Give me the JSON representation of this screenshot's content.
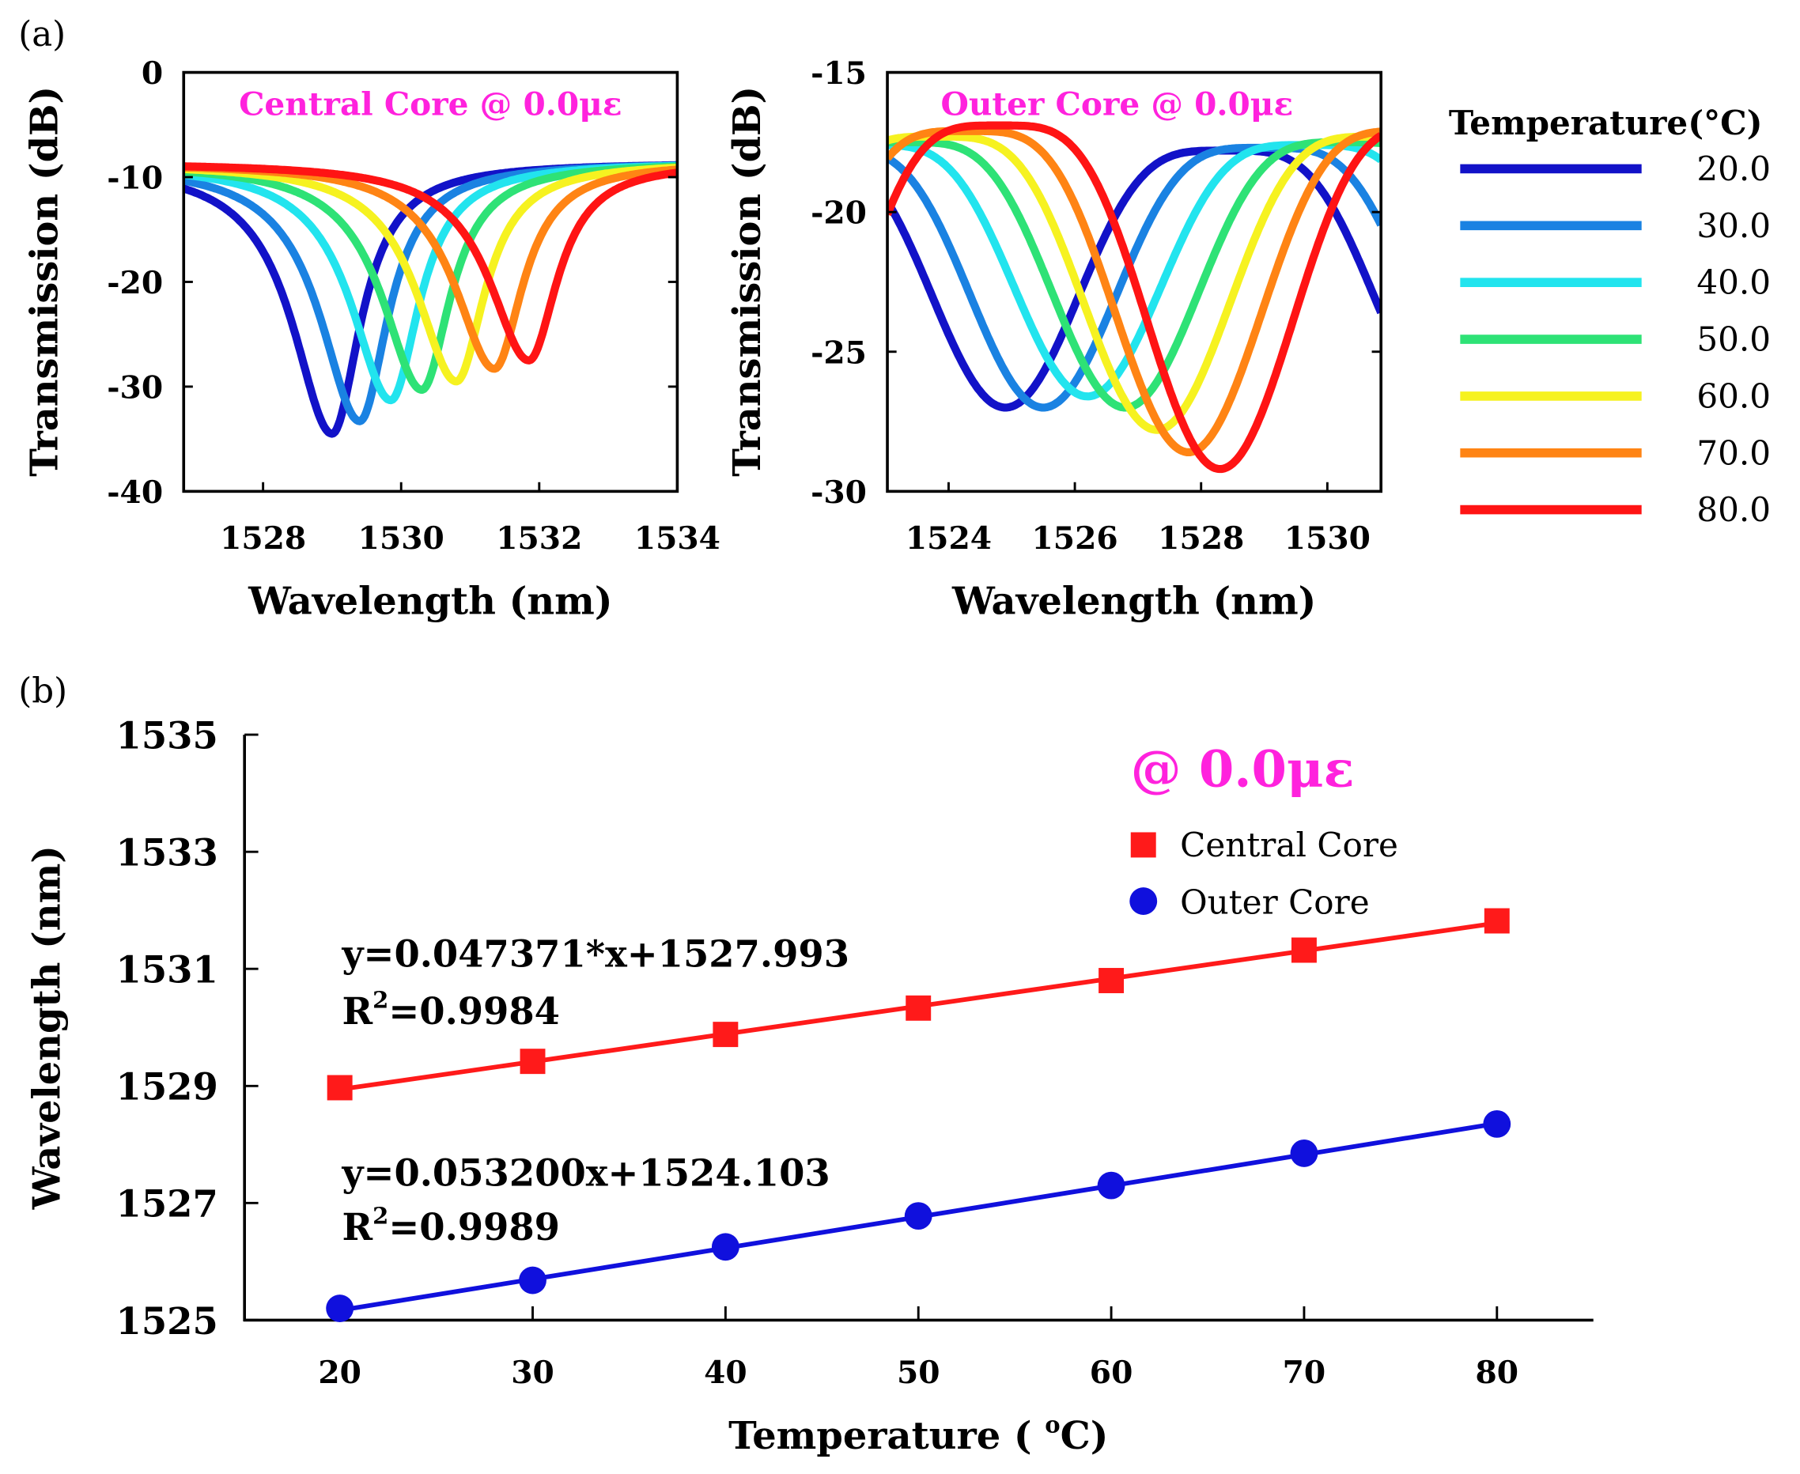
{
  "chart_data": [
    {
      "type": "line",
      "panel_label": "(a)",
      "title": "Central Core @ 0.0με",
      "xlabel": "Wavelength (nm)",
      "ylabel": "Transmission (dB)",
      "xlim": [
        1526.85,
        1534
      ],
      "ylim": [
        -40,
        0
      ],
      "xticks": [
        "1528",
        "1530",
        "1532",
        "1534"
      ],
      "xtick_values": [
        1528,
        1530,
        1532,
        1534
      ],
      "yticks": [
        "0",
        "-10",
        "-20",
        "-30",
        "-40"
      ],
      "ytick_values": [
        0,
        -10,
        -20,
        -30,
        -40
      ],
      "grid": false,
      "series": [
        {
          "name": "20.0",
          "dip_wavelength": 1529.0,
          "dip_db": -34.5
        },
        {
          "name": "30.0",
          "dip_wavelength": 1529.4,
          "dip_db": -33.3
        },
        {
          "name": "40.0",
          "dip_wavelength": 1529.85,
          "dip_db": -31.3
        },
        {
          "name": "50.0",
          "dip_wavelength": 1530.3,
          "dip_db": -30.3
        },
        {
          "name": "60.0",
          "dip_wavelength": 1530.8,
          "dip_db": -29.5
        },
        {
          "name": "70.0",
          "dip_wavelength": 1531.35,
          "dip_db": -28.3
        },
        {
          "name": "80.0",
          "dip_wavelength": 1531.85,
          "dip_db": -27.5
        }
      ]
    },
    {
      "type": "line",
      "title": "Outer Core @ 0.0με",
      "xlabel": "Wavelength (nm)",
      "ylabel": "Transmission (dB)",
      "xlim": [
        1523.03,
        1530.85
      ],
      "ylim": [
        -30,
        -15
      ],
      "xticks": [
        "1524",
        "1526",
        "1528",
        "1530"
      ],
      "xtick_values": [
        1524,
        1526,
        1528,
        1530
      ],
      "yticks": [
        "-15",
        "-20",
        "-25",
        "-30"
      ],
      "ytick_values": [
        -15,
        -20,
        -25,
        -30
      ],
      "grid": false,
      "series": [
        {
          "name": "20.0",
          "dip_wavelength": 1524.9,
          "dip_db": -27.0,
          "peak_db": -17.8
        },
        {
          "name": "30.0",
          "dip_wavelength": 1525.5,
          "dip_db": -27.0,
          "peak_db": -17.7
        },
        {
          "name": "40.0",
          "dip_wavelength": 1526.2,
          "dip_db": -26.6,
          "peak_db": -17.6
        },
        {
          "name": "50.0",
          "dip_wavelength": 1526.8,
          "dip_db": -27.0,
          "peak_db": -17.5
        },
        {
          "name": "60.0",
          "dip_wavelength": 1527.3,
          "dip_db": -27.8,
          "peak_db": -17.3
        },
        {
          "name": "70.0",
          "dip_wavelength": 1527.8,
          "dip_db": -28.6,
          "peak_db": -17.1
        },
        {
          "name": "80.0",
          "dip_wavelength": 1528.3,
          "dip_db": -29.2,
          "peak_db": -16.9
        }
      ],
      "legend": {
        "title": "Temperature(°C)",
        "placement": "right",
        "entries": [
          "20.0",
          "30.0",
          "40.0",
          "50.0",
          "60.0",
          "70.0",
          "80.0"
        ]
      }
    },
    {
      "type": "scatter",
      "panel_label": "(b)",
      "annotation_title": "@ 0.0με",
      "xlabel": "Temperature (°C)",
      "ylabel": "Wavelength (nm)",
      "xlim": [
        15,
        85
      ],
      "ylim": [
        1525,
        1535
      ],
      "categories": [
        20,
        30,
        40,
        50,
        60,
        70,
        80
      ],
      "xticks": [
        "20",
        "30",
        "40",
        "50",
        "60",
        "70",
        "80"
      ],
      "yticks": [
        "1535",
        "1533",
        "1531",
        "1529",
        "1527",
        "1525"
      ],
      "ytick_values": [
        1535,
        1533,
        1531,
        1529,
        1527,
        1525
      ],
      "legend_placement": "top-right",
      "series": [
        {
          "name": "Central Core",
          "marker": "square",
          "values": [
            1528.97,
            1529.42,
            1529.88,
            1530.33,
            1530.8,
            1531.32,
            1531.82
          ],
          "fit": {
            "slope": 0.047371,
            "intercept": 1527.993,
            "equation": "y=0.047371*x+1527.993",
            "r2_label": "R",
            "r2_value": "=0.9984"
          }
        },
        {
          "name": "Outer Core",
          "marker": "circle",
          "values": [
            1525.2,
            1525.68,
            1526.25,
            1526.78,
            1527.3,
            1527.85,
            1528.35
          ],
          "fit": {
            "slope": 0.0532,
            "intercept": 1524.103,
            "equation": "y=0.053200x+1524.103",
            "r2_label": "R",
            "r2_value": "=0.9989"
          }
        }
      ]
    }
  ],
  "colors": {
    "temps": [
      "#1212c8",
      "#1a82e2",
      "#22e4ee",
      "#2ee276",
      "#f6f220",
      "#ff8414",
      "#ff1414"
    ],
    "accent": "#ff22dd",
    "central": "#ff1a1a",
    "outer": "#1010dd"
  },
  "labels": {
    "superscript_2": "2",
    "degree": "o",
    "temp_prefix": "Temperature ( ",
    "temp_suffix": "C)"
  }
}
